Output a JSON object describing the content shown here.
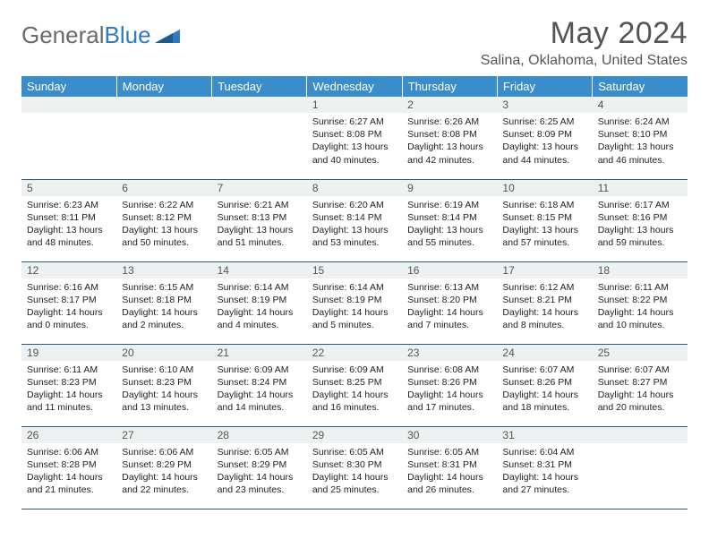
{
  "logo": {
    "text_gray": "General",
    "text_blue": "Blue"
  },
  "title": "May 2024",
  "location": "Salina, Oklahoma, United States",
  "colors": {
    "header_blue": "#3a8dca",
    "daybar_gray": "#eef1f2",
    "rule": "#2c5a7a",
    "text": "#222222",
    "title_gray": "#555555",
    "logo_gray": "#6a6a6a",
    "logo_blue": "#2d7cc0"
  },
  "weekdays": [
    "Sunday",
    "Monday",
    "Tuesday",
    "Wednesday",
    "Thursday",
    "Friday",
    "Saturday"
  ],
  "weeks": [
    [
      null,
      null,
      null,
      {
        "n": "1",
        "sr": "6:27 AM",
        "ss": "8:08 PM",
        "dh": "13",
        "dm": "40"
      },
      {
        "n": "2",
        "sr": "6:26 AM",
        "ss": "8:08 PM",
        "dh": "13",
        "dm": "42"
      },
      {
        "n": "3",
        "sr": "6:25 AM",
        "ss": "8:09 PM",
        "dh": "13",
        "dm": "44"
      },
      {
        "n": "4",
        "sr": "6:24 AM",
        "ss": "8:10 PM",
        "dh": "13",
        "dm": "46"
      }
    ],
    [
      {
        "n": "5",
        "sr": "6:23 AM",
        "ss": "8:11 PM",
        "dh": "13",
        "dm": "48"
      },
      {
        "n": "6",
        "sr": "6:22 AM",
        "ss": "8:12 PM",
        "dh": "13",
        "dm": "50"
      },
      {
        "n": "7",
        "sr": "6:21 AM",
        "ss": "8:13 PM",
        "dh": "13",
        "dm": "51"
      },
      {
        "n": "8",
        "sr": "6:20 AM",
        "ss": "8:14 PM",
        "dh": "13",
        "dm": "53"
      },
      {
        "n": "9",
        "sr": "6:19 AM",
        "ss": "8:14 PM",
        "dh": "13",
        "dm": "55"
      },
      {
        "n": "10",
        "sr": "6:18 AM",
        "ss": "8:15 PM",
        "dh": "13",
        "dm": "57"
      },
      {
        "n": "11",
        "sr": "6:17 AM",
        "ss": "8:16 PM",
        "dh": "13",
        "dm": "59"
      }
    ],
    [
      {
        "n": "12",
        "sr": "6:16 AM",
        "ss": "8:17 PM",
        "dh": "14",
        "dm": "0"
      },
      {
        "n": "13",
        "sr": "6:15 AM",
        "ss": "8:18 PM",
        "dh": "14",
        "dm": "2"
      },
      {
        "n": "14",
        "sr": "6:14 AM",
        "ss": "8:19 PM",
        "dh": "14",
        "dm": "4"
      },
      {
        "n": "15",
        "sr": "6:14 AM",
        "ss": "8:19 PM",
        "dh": "14",
        "dm": "5"
      },
      {
        "n": "16",
        "sr": "6:13 AM",
        "ss": "8:20 PM",
        "dh": "14",
        "dm": "7"
      },
      {
        "n": "17",
        "sr": "6:12 AM",
        "ss": "8:21 PM",
        "dh": "14",
        "dm": "8"
      },
      {
        "n": "18",
        "sr": "6:11 AM",
        "ss": "8:22 PM",
        "dh": "14",
        "dm": "10"
      }
    ],
    [
      {
        "n": "19",
        "sr": "6:11 AM",
        "ss": "8:23 PM",
        "dh": "14",
        "dm": "11"
      },
      {
        "n": "20",
        "sr": "6:10 AM",
        "ss": "8:23 PM",
        "dh": "14",
        "dm": "13"
      },
      {
        "n": "21",
        "sr": "6:09 AM",
        "ss": "8:24 PM",
        "dh": "14",
        "dm": "14"
      },
      {
        "n": "22",
        "sr": "6:09 AM",
        "ss": "8:25 PM",
        "dh": "14",
        "dm": "16"
      },
      {
        "n": "23",
        "sr": "6:08 AM",
        "ss": "8:26 PM",
        "dh": "14",
        "dm": "17"
      },
      {
        "n": "24",
        "sr": "6:07 AM",
        "ss": "8:26 PM",
        "dh": "14",
        "dm": "18"
      },
      {
        "n": "25",
        "sr": "6:07 AM",
        "ss": "8:27 PM",
        "dh": "14",
        "dm": "20"
      }
    ],
    [
      {
        "n": "26",
        "sr": "6:06 AM",
        "ss": "8:28 PM",
        "dh": "14",
        "dm": "21"
      },
      {
        "n": "27",
        "sr": "6:06 AM",
        "ss": "8:29 PM",
        "dh": "14",
        "dm": "22"
      },
      {
        "n": "28",
        "sr": "6:05 AM",
        "ss": "8:29 PM",
        "dh": "14",
        "dm": "23"
      },
      {
        "n": "29",
        "sr": "6:05 AM",
        "ss": "8:30 PM",
        "dh": "14",
        "dm": "25"
      },
      {
        "n": "30",
        "sr": "6:05 AM",
        "ss": "8:31 PM",
        "dh": "14",
        "dm": "26"
      },
      {
        "n": "31",
        "sr": "6:04 AM",
        "ss": "8:31 PM",
        "dh": "14",
        "dm": "27"
      },
      null
    ]
  ],
  "labels": {
    "sunrise": "Sunrise:",
    "sunset": "Sunset:",
    "daylight_pre": "Daylight:",
    "hours": "hours",
    "and": "and",
    "minutes": "minutes."
  }
}
